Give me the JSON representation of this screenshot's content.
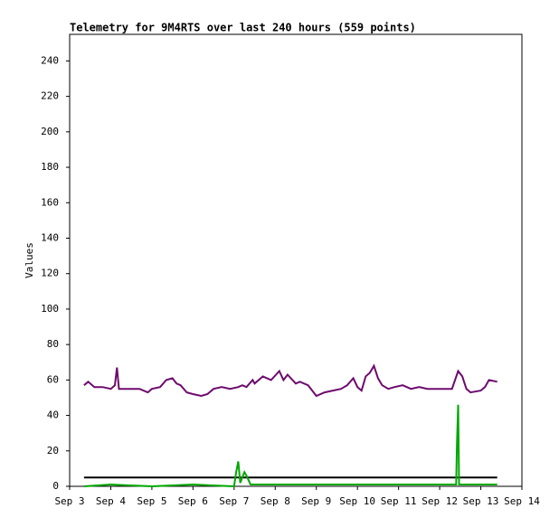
{
  "chart_data": {
    "type": "line",
    "title": "Telemetry for 9M4RTS over last 240 hours (559 points)",
    "y_label": "Values",
    "xlim": [
      3,
      14
    ],
    "xticks": [
      {
        "value": 3,
        "label": "Sep 3"
      },
      {
        "value": 4,
        "label": "Sep 4"
      },
      {
        "value": 5,
        "label": "Sep 5"
      },
      {
        "value": 6,
        "label": "Sep 6"
      },
      {
        "value": 7,
        "label": "Sep 7"
      },
      {
        "value": 8,
        "label": "Sep 8"
      },
      {
        "value": 9,
        "label": "Sep 9"
      },
      {
        "value": 10,
        "label": "Sep 10"
      },
      {
        "value": 11,
        "label": "Sep 11"
      },
      {
        "value": 12,
        "label": "Sep 12"
      },
      {
        "value": 13,
        "label": "Sep 13"
      },
      {
        "value": 14,
        "label": "Sep 14"
      }
    ],
    "ylim": [
      0,
      255
    ],
    "yticks": [
      0,
      20,
      40,
      60,
      80,
      100,
      120,
      140,
      160,
      180,
      200,
      220,
      240
    ],
    "series": [
      {
        "color": "#6e0a6e",
        "x": [
          3.35,
          3.45,
          3.6,
          3.8,
          4.0,
          4.1,
          4.15,
          4.2,
          4.5,
          4.7,
          4.9,
          5.0,
          5.2,
          5.35,
          5.5,
          5.6,
          5.7,
          5.85,
          6.0,
          6.2,
          6.35,
          6.5,
          6.7,
          6.9,
          7.1,
          7.2,
          7.3,
          7.45,
          7.5,
          7.7,
          7.9,
          8.1,
          8.2,
          8.3,
          8.5,
          8.6,
          8.8,
          8.9,
          9.0,
          9.2,
          9.4,
          9.6,
          9.75,
          9.9,
          10.0,
          10.1,
          10.2,
          10.3,
          10.4,
          10.5,
          10.6,
          10.75,
          10.9,
          11.1,
          11.3,
          11.5,
          11.7,
          11.9,
          12.1,
          12.3,
          12.45,
          12.55,
          12.65,
          12.75,
          13.0,
          13.1,
          13.2,
          13.4
        ],
        "values": [
          57,
          59,
          56,
          56,
          55,
          57,
          67,
          55,
          55,
          55,
          53,
          55,
          56,
          60,
          61,
          58,
          57,
          53,
          52,
          51,
          52,
          55,
          56,
          55,
          56,
          57,
          56,
          60,
          58,
          62,
          60,
          65,
          60,
          63,
          58,
          59,
          57,
          54,
          51,
          53,
          54,
          55,
          57,
          61,
          56,
          54,
          62,
          64,
          68,
          61,
          57,
          55,
          56,
          57,
          55,
          56,
          55,
          55,
          55,
          55,
          65,
          62,
          55,
          53,
          54,
          56,
          60,
          59
        ]
      },
      {
        "color": "#000000",
        "x": [
          3.35,
          13.4
        ],
        "values": [
          5,
          5
        ]
      },
      {
        "color": "#00a800",
        "x": [
          3.35,
          4.0,
          5.0,
          6.0,
          7.0,
          7.05,
          7.1,
          7.15,
          7.25,
          7.3,
          7.4,
          8.0,
          9.0,
          10.0,
          11.0,
          12.0,
          12.4,
          12.42,
          12.45,
          12.47,
          13.0,
          13.4
        ],
        "values": [
          0,
          1,
          0,
          1,
          0,
          8,
          14,
          2,
          8,
          6,
          1,
          1,
          1,
          1,
          1,
          1,
          1,
          24,
          46,
          1,
          1,
          1
        ]
      }
    ]
  }
}
